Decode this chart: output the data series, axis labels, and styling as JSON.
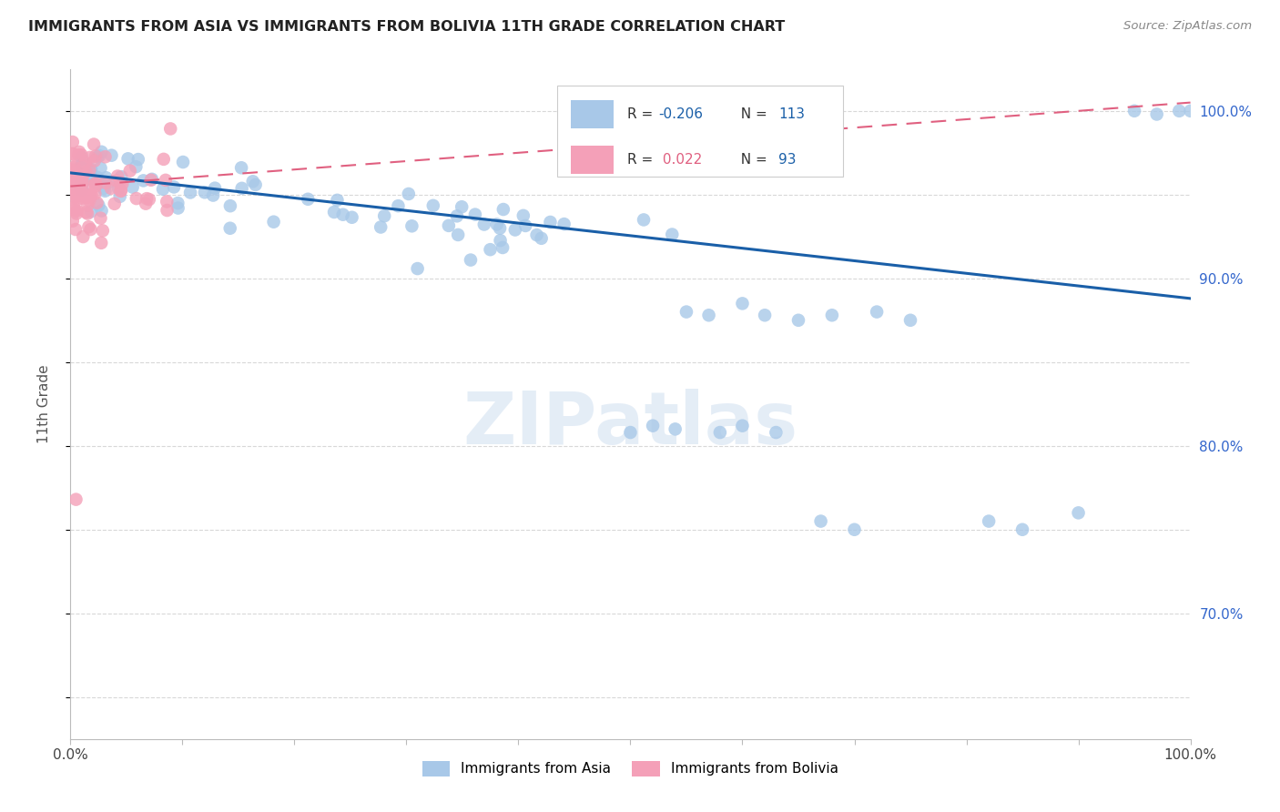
{
  "title": "IMMIGRANTS FROM ASIA VS IMMIGRANTS FROM BOLIVIA 11TH GRADE CORRELATION CHART",
  "source": "Source: ZipAtlas.com",
  "ylabel": "11th Grade",
  "xlim": [
    0.0,
    1.0
  ],
  "ylim": [
    0.625,
    1.025
  ],
  "x_tick_positions": [
    0.0,
    0.1,
    0.2,
    0.3,
    0.4,
    0.5,
    0.6,
    0.7,
    0.8,
    0.9,
    1.0
  ],
  "x_tick_labels": [
    "0.0%",
    "",
    "",
    "",
    "",
    "",
    "",
    "",
    "",
    "",
    "100.0%"
  ],
  "y_tick_positions": [
    0.65,
    0.7,
    0.75,
    0.8,
    0.85,
    0.9,
    0.95,
    1.0
  ],
  "y_tick_labels": [
    "",
    "70.0%",
    "",
    "80.0%",
    "",
    "90.0%",
    "",
    "100.0%"
  ],
  "legend_label_asia": "Immigrants from Asia",
  "legend_label_bolivia": "Immigrants from Bolivia",
  "R_asia": "-0.206",
  "N_asia": "113",
  "R_bolivia": "0.022",
  "N_bolivia": "93",
  "color_asia": "#a8c8e8",
  "color_bolivia": "#f4a0b8",
  "line_color_asia": "#1a5fa8",
  "line_color_bolivia": "#e06080",
  "background_color": "#ffffff",
  "watermark": "ZIPatlas",
  "grid_color": "#d8d8d8",
  "R_asia_color": "#1a5fa8",
  "N_asia_color": "#1a5fa8",
  "R_bolivia_color": "#e06080",
  "N_bolivia_color": "#1a5fa8"
}
